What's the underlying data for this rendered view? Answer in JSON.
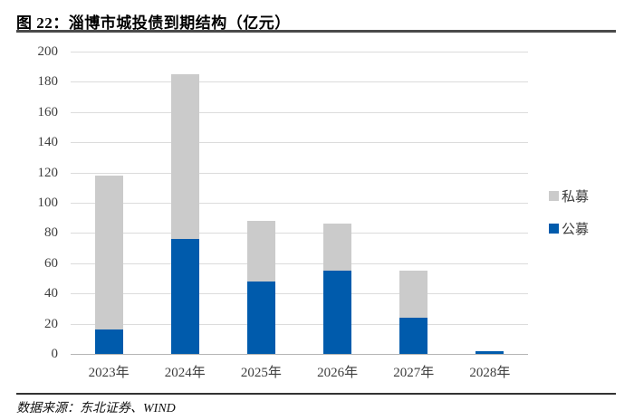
{
  "header": {
    "figure_label": "图 22：",
    "title": "图 22：淄博市城投债到期结构（亿元）"
  },
  "footer": {
    "source": "数据来源：东北证券、WIND"
  },
  "colors": {
    "public_blue": "#005BAC",
    "private_gray": "#CBCBCB",
    "gridline": "#DCDCDC",
    "zero_axis": "#B5B5B5",
    "axis_text": "#3D3D3D",
    "rule": "#4A4A4A"
  },
  "chart_data": {
    "type": "bar",
    "stacked": true,
    "title": "图 22：淄博市城投债到期结构（亿元）",
    "categories": [
      "2023年",
      "2024年",
      "2025年",
      "2026年",
      "2027年",
      "2028年"
    ],
    "series": [
      {
        "name": "公募",
        "color": "#005BAC",
        "values": [
          16,
          76,
          48,
          55,
          24,
          2
        ]
      },
      {
        "name": "私募",
        "color": "#CBCBCB",
        "values": [
          102,
          109,
          40,
          31,
          31,
          0
        ]
      }
    ],
    "totals": [
      118,
      185,
      88,
      86,
      55,
      2
    ],
    "legend": [
      {
        "label": "私募",
        "color": "#CBCBCB"
      },
      {
        "label": "公募",
        "color": "#005BAC"
      }
    ],
    "legend_position": "right",
    "grid": true,
    "xlabel": "",
    "ylabel": "",
    "ylim": [
      0,
      200
    ],
    "yticks": [
      0,
      20,
      40,
      60,
      80,
      100,
      120,
      140,
      160,
      180,
      200
    ]
  }
}
